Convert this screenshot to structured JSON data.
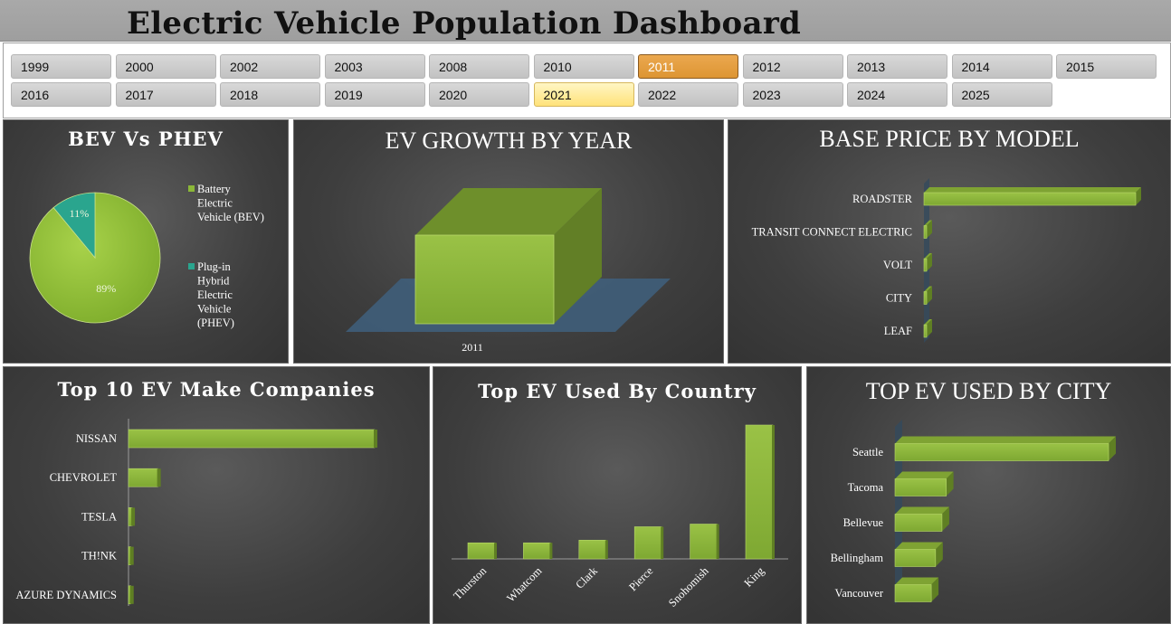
{
  "header": {
    "title": "Electric Vehicle Population Dashboard"
  },
  "slicer": {
    "years": [
      "1999",
      "2000",
      "2002",
      "2003",
      "2008",
      "2010",
      "2011",
      "2012",
      "2013",
      "2014",
      "2015",
      "2016",
      "2017",
      "2018",
      "2019",
      "2020",
      "2021",
      "2022",
      "2023",
      "2024",
      "2025"
    ],
    "selected": "2011",
    "hovered": "2021"
  },
  "colors": {
    "bar": "#8bb738",
    "accent_teal": "#2aa58e",
    "panel": "#3c3c3c",
    "floor": "#3f5e7a",
    "selected": "#e09a3a"
  },
  "charts": [
    {
      "id": "bev-vs-phev",
      "type": "pie",
      "title": "BEV Vs PHEV",
      "labels": [
        "Battery Electric Vehicle (BEV)",
        "Plug-in Hybrid Electric Vehicle (PHEV)"
      ],
      "legend_lines": [
        [
          "Battery",
          "Electric",
          "Vehicle (BEV)"
        ],
        [
          "Plug-in",
          "Hybrid",
          "Electric",
          "Vehicle",
          "(PHEV)"
        ]
      ],
      "values": [
        89,
        11
      ],
      "data_labels": [
        "89%",
        "11%"
      ],
      "legend": "right"
    },
    {
      "id": "ev-growth-by-year",
      "type": "bar",
      "title": "EV GROWTH BY YEAR",
      "categories": [
        "2011"
      ],
      "values": [
        1
      ]
    },
    {
      "id": "base-price-by-model",
      "type": "bar",
      "orientation": "horizontal",
      "title": "BASE PRICE BY MODEL",
      "categories": [
        "ROADSTER",
        "TRANSIT CONNECT ELECTRIC",
        "VOLT",
        "CITY",
        "LEAF"
      ],
      "values": [
        100,
        1,
        1,
        1,
        1
      ]
    },
    {
      "id": "top-10-ev-make",
      "type": "bar",
      "orientation": "horizontal",
      "title": "Top 10 EV Make Companies",
      "categories": [
        "NISSAN",
        "CHEVROLET",
        "TESLA",
        "TH!NK",
        "AZURE DYNAMICS"
      ],
      "values": [
        100,
        12,
        1.5,
        1,
        1
      ]
    },
    {
      "id": "top-ev-by-country",
      "type": "bar",
      "title": "Top EV Used By Country",
      "categories": [
        "Thurston",
        "Whatcom",
        "Clark",
        "Pierce",
        "Snohomish",
        "King"
      ],
      "values": [
        12,
        12,
        14,
        24,
        26,
        100
      ]
    },
    {
      "id": "top-ev-by-city",
      "type": "bar",
      "orientation": "horizontal",
      "title": "TOP EV USED BY CITY",
      "categories": [
        "Seattle",
        "Tacoma",
        "Bellevue",
        "Bellingham",
        "Vancouver"
      ],
      "values": [
        100,
        24,
        22,
        19,
        17
      ]
    }
  ]
}
